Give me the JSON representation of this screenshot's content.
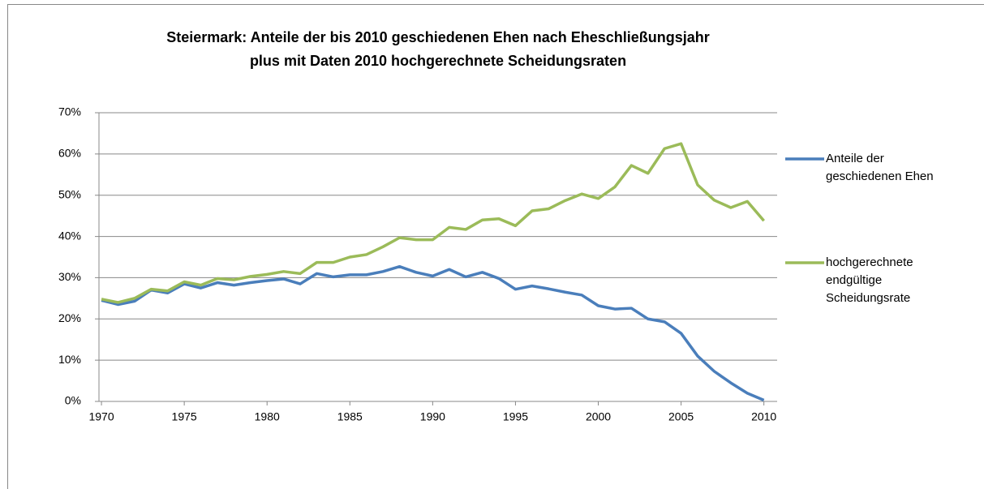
{
  "chart_data": {
    "type": "line",
    "title": [
      "Steiermark: Anteile der bis 2010 geschiedenen Ehen nach Eheschließungsjahr",
      "plus mit Daten 2010 hochgerechnete Scheidungsraten"
    ],
    "x": [
      1970,
      1971,
      1972,
      1973,
      1974,
      1975,
      1976,
      1977,
      1978,
      1979,
      1980,
      1981,
      1982,
      1983,
      1984,
      1985,
      1986,
      1987,
      1988,
      1989,
      1990,
      1991,
      1992,
      1993,
      1994,
      1995,
      1996,
      1997,
      1998,
      1999,
      2000,
      2001,
      2002,
      2003,
      2004,
      2005,
      2006,
      2007,
      2008,
      2009,
      2010
    ],
    "series": [
      {
        "name": "Anteile der geschiedenen Ehen",
        "color": "#4a7ebb",
        "values": [
          24.5,
          23.5,
          24.3,
          27,
          26.3,
          28.5,
          27.5,
          28.8,
          28.2,
          28.8,
          29.3,
          29.7,
          28.5,
          31,
          30.2,
          30.7,
          30.7,
          31.5,
          32.7,
          31.3,
          30.4,
          32,
          30.2,
          31.3,
          29.8,
          27.2,
          28,
          27.3,
          26.5,
          25.8,
          23.2,
          22.4,
          22.6,
          20,
          19.3,
          16.5,
          11,
          7.3,
          4.5,
          2,
          0.3
        ]
      },
      {
        "name": "hochgerechnete endgültige Scheidungsrate",
        "color": "#9bbb59",
        "values": [
          24.8,
          24,
          25,
          27.2,
          26.8,
          29,
          28.2,
          29.8,
          29.5,
          30.3,
          30.8,
          31.5,
          31,
          33.7,
          33.7,
          35,
          35.6,
          37.5,
          39.7,
          39.2,
          39.2,
          42.2,
          41.7,
          44,
          44.3,
          42.6,
          46.2,
          46.7,
          48.7,
          50.3,
          49.2,
          52,
          57.2,
          55.3,
          61.3,
          62.5,
          52.5,
          48.8,
          47,
          48.5,
          43.8
        ]
      }
    ],
    "xlim": [
      1969.85,
      2010.8
    ],
    "xticks": [
      1970,
      1975,
      1980,
      1985,
      1990,
      1995,
      2000,
      2005,
      2010
    ],
    "ylim": [
      0,
      70
    ],
    "yticks": [
      {
        "value": 0,
        "label": "0%"
      },
      {
        "value": 10,
        "label": "10%"
      },
      {
        "value": 20,
        "label": "20%"
      },
      {
        "value": 30,
        "label": "30%"
      },
      {
        "value": 40,
        "label": "40%"
      },
      {
        "value": 50,
        "label": "50%"
      },
      {
        "value": 60,
        "label": "60%"
      },
      {
        "value": 70,
        "label": "70%"
      }
    ],
    "grid": true,
    "legend": "right"
  }
}
